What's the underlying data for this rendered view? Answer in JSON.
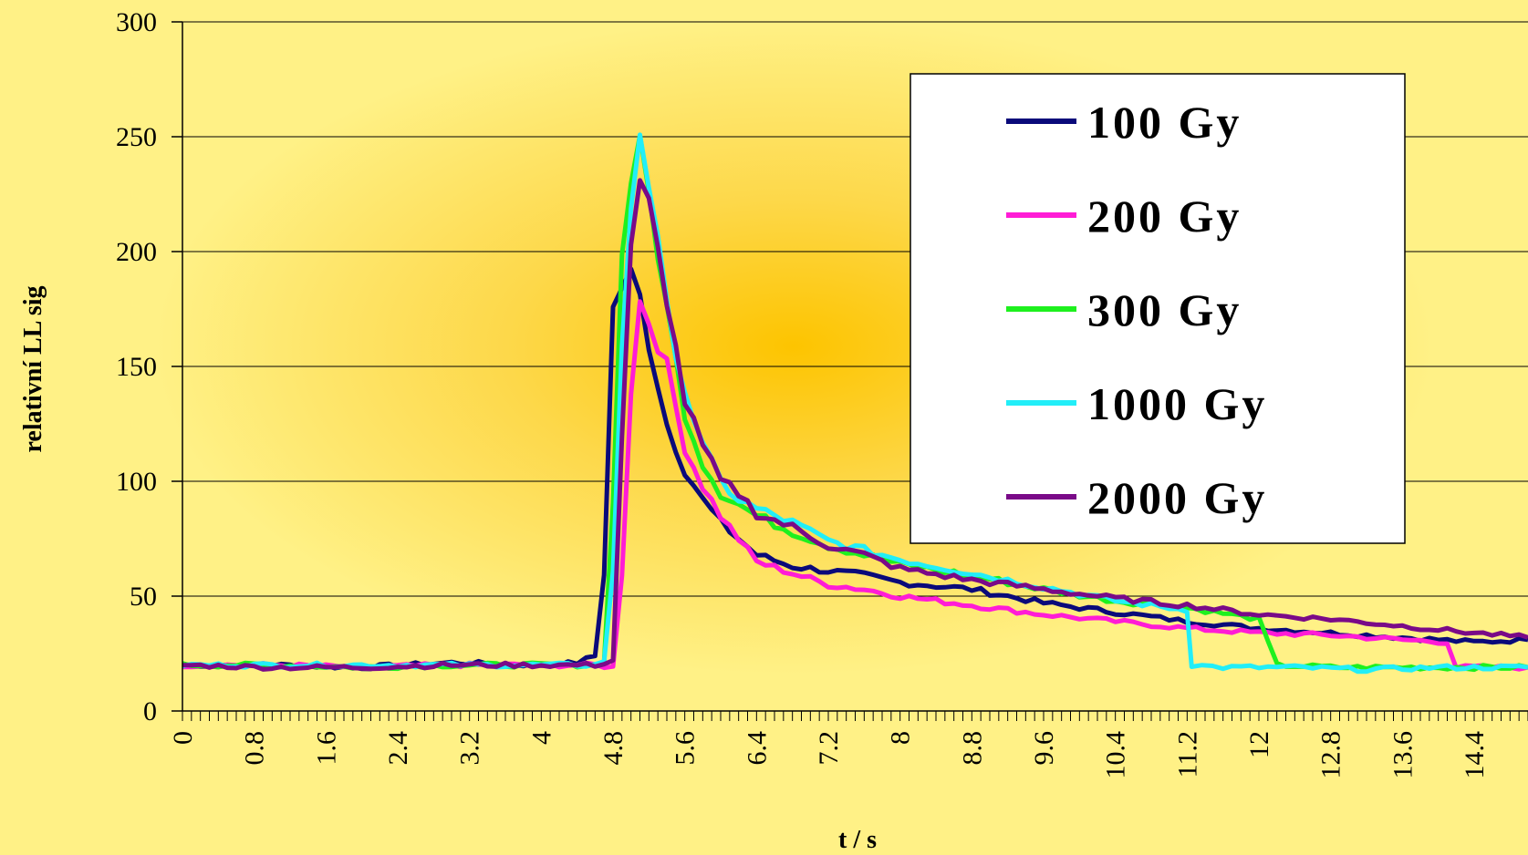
{
  "chart_data": {
    "type": "line",
    "title": "",
    "xlabel": "t / s",
    "ylabel": "relativní LL sig",
    "xlim": [
      0,
      15
    ],
    "ylim": [
      0,
      300
    ],
    "x_tick_labels": [
      "0",
      "0.8",
      "1.6",
      "2.4",
      "3.2",
      "4",
      "4.8",
      "5.6",
      "6.4",
      "7.2",
      "8",
      "8.8",
      "9.6",
      "10.4",
      "11.2",
      "12",
      "12.8",
      "13.6",
      "14.4"
    ],
    "y_tick_labels": [
      "0",
      "50",
      "100",
      "150",
      "200",
      "250",
      "300"
    ],
    "grid": "horizontal",
    "legend_position": "top-right",
    "series": [
      {
        "name": "100 Gy",
        "color": "#0a0a7a",
        "points": [
          [
            0,
            20
          ],
          [
            1,
            20
          ],
          [
            2,
            19
          ],
          [
            3,
            21
          ],
          [
            4,
            20
          ],
          [
            4.4,
            21
          ],
          [
            4.6,
            24
          ],
          [
            4.7,
            60
          ],
          [
            4.8,
            175
          ],
          [
            4.9,
            185
          ],
          [
            5.0,
            190
          ],
          [
            5.1,
            180
          ],
          [
            5.2,
            160
          ],
          [
            5.4,
            125
          ],
          [
            5.6,
            105
          ],
          [
            5.8,
            92
          ],
          [
            6.0,
            82
          ],
          [
            6.2,
            75
          ],
          [
            6.4,
            68
          ],
          [
            6.8,
            63
          ],
          [
            7.2,
            61
          ],
          [
            7.6,
            59
          ],
          [
            8.0,
            56
          ],
          [
            8.8,
            53
          ],
          [
            9.6,
            47
          ],
          [
            10.4,
            43
          ],
          [
            11.2,
            39
          ],
          [
            12,
            36
          ],
          [
            12.8,
            34
          ],
          [
            13.6,
            32
          ],
          [
            14.4,
            30
          ],
          [
            15,
            31
          ]
        ]
      },
      {
        "name": "200 Gy",
        "color": "#ff1cd6",
        "points": [
          [
            0,
            20
          ],
          [
            1,
            20
          ],
          [
            2,
            19
          ],
          [
            3,
            20
          ],
          [
            4,
            20
          ],
          [
            4.6,
            20
          ],
          [
            4.8,
            19
          ],
          [
            4.9,
            60
          ],
          [
            5.0,
            140
          ],
          [
            5.1,
            178
          ],
          [
            5.2,
            170
          ],
          [
            5.4,
            150
          ],
          [
            5.6,
            115
          ],
          [
            5.8,
            98
          ],
          [
            6.0,
            85
          ],
          [
            6.2,
            75
          ],
          [
            6.4,
            65
          ],
          [
            6.8,
            60
          ],
          [
            7.2,
            55
          ],
          [
            7.6,
            53
          ],
          [
            8.0,
            50
          ],
          [
            8.8,
            46
          ],
          [
            9.6,
            42
          ],
          [
            10.4,
            39
          ],
          [
            11.2,
            36
          ],
          [
            12,
            34
          ],
          [
            12.8,
            33
          ],
          [
            13.6,
            31
          ],
          [
            14.1,
            30
          ],
          [
            14.2,
            19
          ],
          [
            14.4,
            19
          ],
          [
            15,
            19
          ]
        ]
      },
      {
        "name": "300 Gy",
        "color": "#1ef01e",
        "points": [
          [
            0,
            20
          ],
          [
            1,
            20
          ],
          [
            2,
            19
          ],
          [
            3,
            20
          ],
          [
            4,
            20
          ],
          [
            4.6,
            20
          ],
          [
            4.7,
            22
          ],
          [
            4.8,
            90
          ],
          [
            4.9,
            200
          ],
          [
            5.0,
            232
          ],
          [
            5.1,
            245
          ],
          [
            5.2,
            225
          ],
          [
            5.4,
            175
          ],
          [
            5.6,
            130
          ],
          [
            5.8,
            108
          ],
          [
            6.0,
            95
          ],
          [
            6.2,
            90
          ],
          [
            6.4,
            85
          ],
          [
            6.8,
            78
          ],
          [
            7.2,
            72
          ],
          [
            7.6,
            68
          ],
          [
            8.0,
            64
          ],
          [
            8.8,
            59
          ],
          [
            9.6,
            53
          ],
          [
            10.4,
            48
          ],
          [
            11.2,
            45
          ],
          [
            12,
            40
          ],
          [
            12.1,
            30
          ],
          [
            12.2,
            20
          ],
          [
            12.8,
            19
          ],
          [
            13.6,
            19
          ],
          [
            14.4,
            19
          ],
          [
            15,
            19
          ]
        ]
      },
      {
        "name": "1000 Gy",
        "color": "#22eef8",
        "points": [
          [
            0,
            20
          ],
          [
            1,
            20
          ],
          [
            2,
            20
          ],
          [
            3,
            20
          ],
          [
            4,
            20
          ],
          [
            4.6,
            20
          ],
          [
            4.7,
            22
          ],
          [
            4.8,
            60
          ],
          [
            4.9,
            160
          ],
          [
            5.0,
            220
          ],
          [
            5.1,
            254
          ],
          [
            5.2,
            230
          ],
          [
            5.4,
            175
          ],
          [
            5.6,
            140
          ],
          [
            5.8,
            115
          ],
          [
            6.0,
            100
          ],
          [
            6.2,
            92
          ],
          [
            6.4,
            88
          ],
          [
            6.8,
            82
          ],
          [
            7.2,
            74
          ],
          [
            7.6,
            70
          ],
          [
            8.0,
            66
          ],
          [
            8.8,
            60
          ],
          [
            9.6,
            54
          ],
          [
            10.4,
            48
          ],
          [
            11.2,
            44
          ],
          [
            11.25,
            20
          ],
          [
            11.6,
            19
          ],
          [
            12.4,
            19
          ],
          [
            13.2,
            18
          ],
          [
            14.0,
            19
          ],
          [
            14.4,
            19
          ],
          [
            15,
            19
          ]
        ]
      },
      {
        "name": "2000 Gy",
        "color": "#7a0a88",
        "points": [
          [
            0,
            20
          ],
          [
            1,
            19
          ],
          [
            2,
            19
          ],
          [
            3,
            20
          ],
          [
            4,
            20
          ],
          [
            4.6,
            20
          ],
          [
            4.8,
            22
          ],
          [
            4.9,
            120
          ],
          [
            5.0,
            200
          ],
          [
            5.1,
            228
          ],
          [
            5.2,
            220
          ],
          [
            5.4,
            180
          ],
          [
            5.6,
            135
          ],
          [
            5.8,
            115
          ],
          [
            6.0,
            100
          ],
          [
            6.2,
            95
          ],
          [
            6.4,
            86
          ],
          [
            6.8,
            80
          ],
          [
            7.2,
            72
          ],
          [
            7.6,
            68
          ],
          [
            8.0,
            62
          ],
          [
            8.8,
            57
          ],
          [
            9.6,
            53
          ],
          [
            10.4,
            49
          ],
          [
            11.2,
            46
          ],
          [
            12,
            42
          ],
          [
            12.8,
            40
          ],
          [
            13.6,
            37
          ],
          [
            14.4,
            34
          ],
          [
            15,
            32
          ]
        ]
      }
    ]
  }
}
